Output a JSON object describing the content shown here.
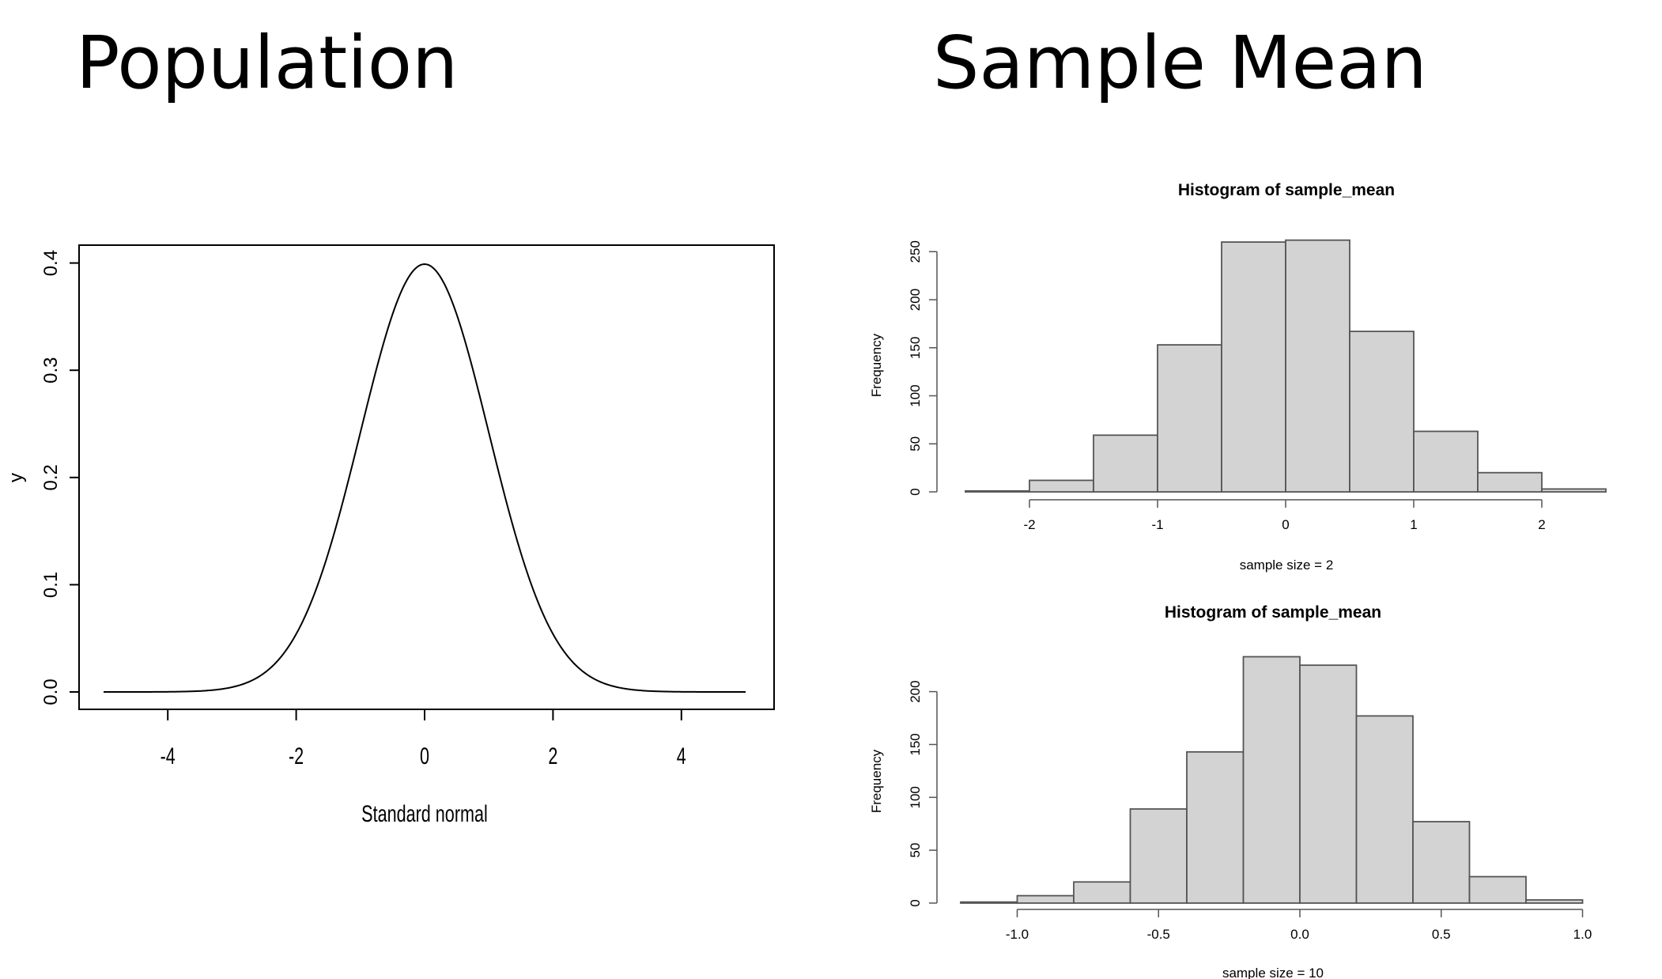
{
  "left_heading": "Population",
  "right_heading": "Sample Mean",
  "chart_data": [
    {
      "type": "line",
      "title": "",
      "xlabel": "Standard normal",
      "ylabel": "y",
      "xlim": [
        -5,
        5
      ],
      "ylim": [
        0,
        0.4
      ],
      "x_ticks": [
        -4,
        -2,
        0,
        2,
        4
      ],
      "x_tick_labels": [
        "-4",
        "-2",
        "0",
        "2",
        "4"
      ],
      "y_ticks": [
        0,
        0.1,
        0.2,
        0.3,
        0.4
      ],
      "y_tick_labels": [
        "0.0",
        "0.1",
        "0.2",
        "0.3",
        "0.4"
      ],
      "series": [
        {
          "function": "standard normal density",
          "mean": 0,
          "sd": 1
        }
      ],
      "color": "#000000"
    },
    {
      "type": "bar",
      "title": "Histogram of sample_mean",
      "xlabel": "sample size = 2",
      "ylabel": "Frequency",
      "bin_edges": [
        -2.5,
        -2.0,
        -1.5,
        -1.0,
        -0.5,
        0.0,
        0.5,
        1.0,
        1.5,
        2.0,
        2.5
      ],
      "values": [
        1,
        12,
        59,
        153,
        260,
        262,
        167,
        63,
        20,
        3
      ],
      "x_ticks": [
        -2,
        -1,
        0,
        1,
        2
      ],
      "x_tick_labels": [
        "-2",
        "-1",
        "0",
        "1",
        "2"
      ],
      "y_ticks": [
        0,
        50,
        100,
        150,
        200,
        250
      ],
      "y_tick_labels": [
        "0",
        "50",
        "100",
        "150",
        "200",
        "250"
      ],
      "ylim": [
        0,
        260
      ],
      "bar_color": "#d3d3d3"
    },
    {
      "type": "bar",
      "title": "Histogram of sample_mean",
      "xlabel": "sample size = 10",
      "ylabel": "Frequency",
      "bin_edges": [
        -1.2,
        -1.0,
        -0.8,
        -0.6,
        -0.4,
        -0.2,
        0.0,
        0.2,
        0.4,
        0.6,
        0.8,
        1.0
      ],
      "values": [
        1,
        7,
        20,
        89,
        143,
        233,
        225,
        177,
        77,
        25,
        3
      ],
      "x_ticks": [
        -1.0,
        -0.5,
        0.0,
        0.5,
        1.0
      ],
      "x_tick_labels": [
        "-1.0",
        "-0.5",
        "0.0",
        "0.5",
        "1.0"
      ],
      "y_ticks": [
        0,
        50,
        100,
        150,
        200
      ],
      "y_tick_labels": [
        "0",
        "50",
        "100",
        "150",
        "200"
      ],
      "ylim": [
        0,
        230
      ],
      "bar_color": "#d3d3d3"
    }
  ]
}
